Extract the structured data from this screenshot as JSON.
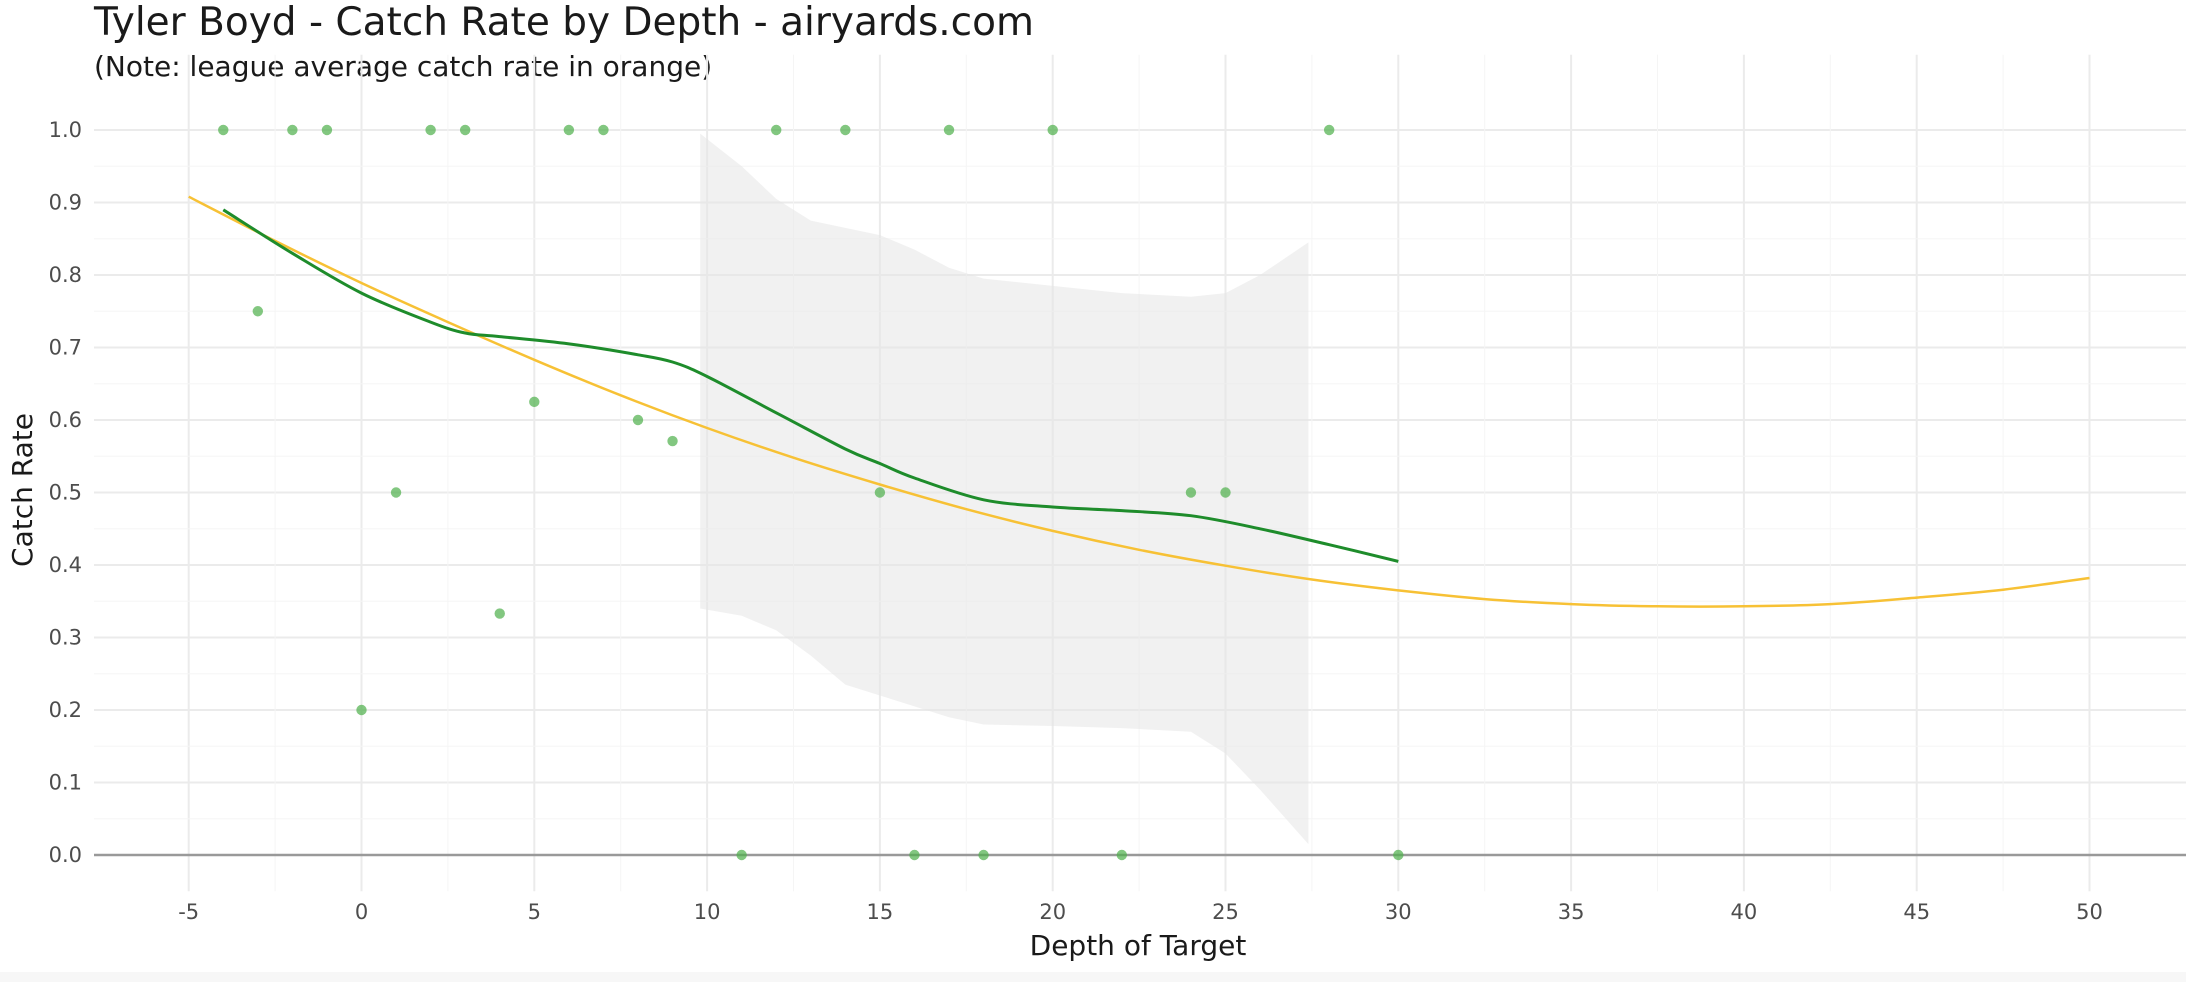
{
  "chart_data": {
    "type": "scatter",
    "title": "Tyler Boyd - Catch Rate by Depth - airyards.com",
    "subtitle": "(Note: league average catch rate in orange)",
    "xlabel": "Depth of Target",
    "ylabel": "Catch Rate",
    "xlim": [
      -7.7,
      53
    ],
    "ylim": [
      -0.05,
      1.05
    ],
    "x_ticks": [
      -5,
      0,
      5,
      10,
      15,
      20,
      25,
      30,
      35,
      40,
      45,
      50
    ],
    "x_tick_labels": [
      "-5",
      "0",
      "5",
      "10",
      "15",
      "20",
      "25",
      "30",
      "35",
      "40",
      "45",
      "50"
    ],
    "y_ticks": [
      0.0,
      0.1,
      0.2,
      0.3,
      0.4,
      0.5,
      0.6,
      0.7,
      0.8,
      0.9,
      1.0
    ],
    "y_tick_labels": [
      "0.0",
      "0.1",
      "0.2",
      "0.3",
      "0.4",
      "0.5",
      "0.6",
      "0.7",
      "0.8",
      "0.9",
      "1.0"
    ],
    "grid": true,
    "colors": {
      "points": "#4daf4a",
      "player_trend": "#1e8c2b",
      "league_trend": "#f7c135",
      "confidence_band": "#e6e6e6",
      "zero_line": "#999999",
      "grid": "#ebebeb"
    },
    "series": [
      {
        "kind": "points",
        "x": [
          -4,
          -3,
          -2,
          -1,
          0,
          1,
          2,
          3,
          4,
          5,
          6,
          7,
          8,
          9,
          11,
          12,
          14,
          15,
          16,
          17,
          18,
          20,
          22,
          24,
          25,
          28,
          30
        ],
        "y": [
          1.0,
          0.75,
          1.0,
          1.0,
          0.2,
          0.5,
          1.0,
          1.0,
          0.333,
          0.625,
          1.0,
          1.0,
          0.6,
          0.571,
          0.0,
          1.0,
          1.0,
          0.5,
          0.0,
          1.0,
          0.0,
          1.0,
          0.0,
          0.5,
          0.5,
          1.0,
          0.0
        ]
      },
      {
        "kind": "player-trend",
        "x": [
          -4,
          -2,
          0,
          2,
          3,
          4,
          6,
          8,
          9,
          10,
          12,
          14,
          15,
          16,
          18,
          20,
          22,
          24,
          26,
          28,
          30
        ],
        "y": [
          0.89,
          0.83,
          0.775,
          0.735,
          0.72,
          0.715,
          0.705,
          0.69,
          0.68,
          0.66,
          0.61,
          0.56,
          0.54,
          0.52,
          0.49,
          0.48,
          0.475,
          0.468,
          0.45,
          0.428,
          0.405
        ]
      },
      {
        "kind": "league-trend",
        "x": [
          -5,
          -2.5,
          0,
          2.5,
          5,
          7.5,
          10,
          12.5,
          15,
          17.5,
          20,
          22.5,
          25,
          27.5,
          30,
          32.5,
          35,
          37.5,
          40,
          42.5,
          45,
          47.5,
          50
        ],
        "y": [
          0.908,
          0.847,
          0.789,
          0.735,
          0.683,
          0.634,
          0.589,
          0.548,
          0.511,
          0.477,
          0.447,
          0.421,
          0.399,
          0.38,
          0.365,
          0.353,
          0.346,
          0.343,
          0.343,
          0.346,
          0.355,
          0.366,
          0.382
        ]
      },
      {
        "kind": "confidence-band",
        "x": [
          9.8,
          11,
          12,
          13,
          14,
          15,
          16,
          17,
          18,
          20,
          22,
          24,
          25,
          26,
          27.4
        ],
        "upper": [
          0.995,
          0.95,
          0.905,
          0.875,
          0.865,
          0.855,
          0.835,
          0.81,
          0.795,
          0.785,
          0.775,
          0.77,
          0.775,
          0.8,
          0.845
        ],
        "lower": [
          0.34,
          0.33,
          0.31,
          0.275,
          0.235,
          0.22,
          0.205,
          0.19,
          0.18,
          0.178,
          0.175,
          0.17,
          0.14,
          0.09,
          0.015
        ]
      }
    ]
  }
}
